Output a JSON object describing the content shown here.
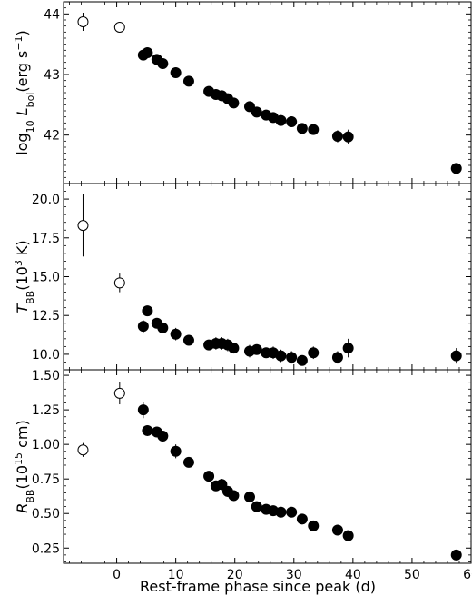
{
  "chart_data": {
    "type": "scatter",
    "xlabel": "Rest-frame phase since peak (d)",
    "xlim": [
      -9,
      60
    ],
    "xticks": [
      "0",
      "10",
      "20",
      "30",
      "40",
      "50",
      "60"
    ],
    "xtick_values": [
      0,
      10,
      20,
      30,
      40,
      50,
      60
    ],
    "panels": [
      {
        "ylabel": "log10 Lbol(erg s−1)",
        "ylabel_parts": {
          "prefix": "log",
          "prefix_sub": "10",
          "var": " L",
          "var_sub": "bol",
          "rest": "(erg s",
          "sup": "−1",
          "end": ")"
        },
        "ylim": [
          41.2,
          44.2
        ],
        "yticks": [
          "42",
          "43",
          "44"
        ],
        "ytick_values": [
          42,
          43,
          44
        ],
        "open": [
          {
            "x": -5.7,
            "y": 43.87,
            "err": 0.15
          },
          {
            "x": 0.5,
            "y": 43.78,
            "err": 0.08
          }
        ],
        "filled": [
          {
            "x": 4.5,
            "y": 43.32,
            "err": 0.05
          },
          {
            "x": 5.2,
            "y": 43.36,
            "err": 0.05
          },
          {
            "x": 6.8,
            "y": 43.25,
            "err": 0.05
          },
          {
            "x": 7.8,
            "y": 43.18,
            "err": 0.05
          },
          {
            "x": 10.0,
            "y": 43.03,
            "err": 0.05
          },
          {
            "x": 12.2,
            "y": 42.89,
            "err": 0.05
          },
          {
            "x": 15.6,
            "y": 42.72,
            "err": 0.05
          },
          {
            "x": 16.8,
            "y": 42.67,
            "err": 0.05
          },
          {
            "x": 17.8,
            "y": 42.65,
            "err": 0.06
          },
          {
            "x": 18.8,
            "y": 42.6,
            "err": 0.06
          },
          {
            "x": 19.8,
            "y": 42.53,
            "err": 0.06
          },
          {
            "x": 22.5,
            "y": 42.47,
            "err": 0.08
          },
          {
            "x": 23.7,
            "y": 42.38,
            "err": 0.06
          },
          {
            "x": 25.3,
            "y": 42.33,
            "err": 0.06
          },
          {
            "x": 26.5,
            "y": 42.29,
            "err": 0.08
          },
          {
            "x": 27.8,
            "y": 42.24,
            "err": 0.08
          },
          {
            "x": 29.6,
            "y": 42.22,
            "err": 0.08
          },
          {
            "x": 31.4,
            "y": 42.11,
            "err": 0.08
          },
          {
            "x": 33.3,
            "y": 42.09,
            "err": 0.08
          },
          {
            "x": 37.4,
            "y": 41.98,
            "err": 0.1
          },
          {
            "x": 39.2,
            "y": 41.97,
            "err": 0.12
          },
          {
            "x": 57.5,
            "y": 41.45,
            "err": 0.08
          }
        ]
      },
      {
        "ylabel": "TBB(10^3 K)",
        "ylabel_parts": {
          "var": "T",
          "var_sub": "BB",
          "rest": "(10",
          "sup": "3",
          "end": " K)"
        },
        "ylim": [
          9.0,
          21.0
        ],
        "yticks": [
          "10.0",
          "12.5",
          "15.0",
          "17.5",
          "20.0"
        ],
        "ytick_values": [
          10.0,
          12.5,
          15.0,
          17.5,
          20.0
        ],
        "open": [
          {
            "x": -5.7,
            "y": 18.3,
            "err": 2.0
          },
          {
            "x": 0.5,
            "y": 14.6,
            "err": 0.6
          }
        ],
        "filled": [
          {
            "x": 4.5,
            "y": 11.8,
            "err": 0.4
          },
          {
            "x": 5.2,
            "y": 12.8,
            "err": 0.3
          },
          {
            "x": 6.8,
            "y": 12.0,
            "err": 0.3
          },
          {
            "x": 7.8,
            "y": 11.7,
            "err": 0.3
          },
          {
            "x": 10.0,
            "y": 11.3,
            "err": 0.4
          },
          {
            "x": 12.2,
            "y": 10.9,
            "err": 0.3
          },
          {
            "x": 15.6,
            "y": 10.6,
            "err": 0.3
          },
          {
            "x": 16.8,
            "y": 10.7,
            "err": 0.4
          },
          {
            "x": 17.8,
            "y": 10.7,
            "err": 0.4
          },
          {
            "x": 18.8,
            "y": 10.6,
            "err": 0.4
          },
          {
            "x": 19.8,
            "y": 10.4,
            "err": 0.3
          },
          {
            "x": 22.5,
            "y": 10.2,
            "err": 0.4
          },
          {
            "x": 23.7,
            "y": 10.3,
            "err": 0.3
          },
          {
            "x": 25.3,
            "y": 10.1,
            "err": 0.3
          },
          {
            "x": 26.5,
            "y": 10.1,
            "err": 0.4
          },
          {
            "x": 27.8,
            "y": 9.9,
            "err": 0.4
          },
          {
            "x": 29.6,
            "y": 9.8,
            "err": 0.4
          },
          {
            "x": 31.4,
            "y": 9.6,
            "err": 0.3
          },
          {
            "x": 33.3,
            "y": 10.1,
            "err": 0.4
          },
          {
            "x": 37.4,
            "y": 9.8,
            "err": 0.4
          },
          {
            "x": 39.2,
            "y": 10.4,
            "err": 0.6
          },
          {
            "x": 57.5,
            "y": 9.9,
            "err": 0.5
          }
        ]
      },
      {
        "ylabel": "RBB(10^15 cm)",
        "ylabel_parts": {
          "var": "R",
          "var_sub": "BB",
          "rest": "(10",
          "sup": "15",
          "end": " cm)"
        },
        "ylim": [
          0.14,
          1.54
        ],
        "yticks": [
          "0.25",
          "0.50",
          "0.75",
          "1.00",
          "1.25",
          "1.50"
        ],
        "ytick_values": [
          0.25,
          0.5,
          0.75,
          1.0,
          1.25,
          1.5
        ],
        "open": [
          {
            "x": -5.7,
            "y": 0.96,
            "err": 0.05
          },
          {
            "x": 0.5,
            "y": 1.37,
            "err": 0.08
          }
        ],
        "filled": [
          {
            "x": 4.5,
            "y": 1.25,
            "err": 0.06
          },
          {
            "x": 5.2,
            "y": 1.1,
            "err": 0.03
          },
          {
            "x": 6.8,
            "y": 1.09,
            "err": 0.03
          },
          {
            "x": 7.8,
            "y": 1.06,
            "err": 0.03
          },
          {
            "x": 10.0,
            "y": 0.95,
            "err": 0.05
          },
          {
            "x": 12.2,
            "y": 0.87,
            "err": 0.03
          },
          {
            "x": 15.6,
            "y": 0.77,
            "err": 0.03
          },
          {
            "x": 16.8,
            "y": 0.7,
            "err": 0.03
          },
          {
            "x": 17.8,
            "y": 0.71,
            "err": 0.04
          },
          {
            "x": 18.8,
            "y": 0.66,
            "err": 0.04
          },
          {
            "x": 19.8,
            "y": 0.63,
            "err": 0.03
          },
          {
            "x": 22.5,
            "y": 0.62,
            "err": 0.04
          },
          {
            "x": 23.7,
            "y": 0.55,
            "err": 0.03
          },
          {
            "x": 25.3,
            "y": 0.53,
            "err": 0.03
          },
          {
            "x": 26.5,
            "y": 0.52,
            "err": 0.03
          },
          {
            "x": 27.8,
            "y": 0.51,
            "err": 0.03
          },
          {
            "x": 29.6,
            "y": 0.51,
            "err": 0.03
          },
          {
            "x": 31.4,
            "y": 0.46,
            "err": 0.03
          },
          {
            "x": 33.3,
            "y": 0.41,
            "err": 0.03
          },
          {
            "x": 37.4,
            "y": 0.38,
            "err": 0.03
          },
          {
            "x": 39.2,
            "y": 0.34,
            "err": 0.03
          },
          {
            "x": 57.5,
            "y": 0.2,
            "err": 0.02
          }
        ]
      }
    ],
    "grid": false,
    "marker_style": {
      "filled": "black filled circle",
      "open": "black open circle"
    }
  }
}
